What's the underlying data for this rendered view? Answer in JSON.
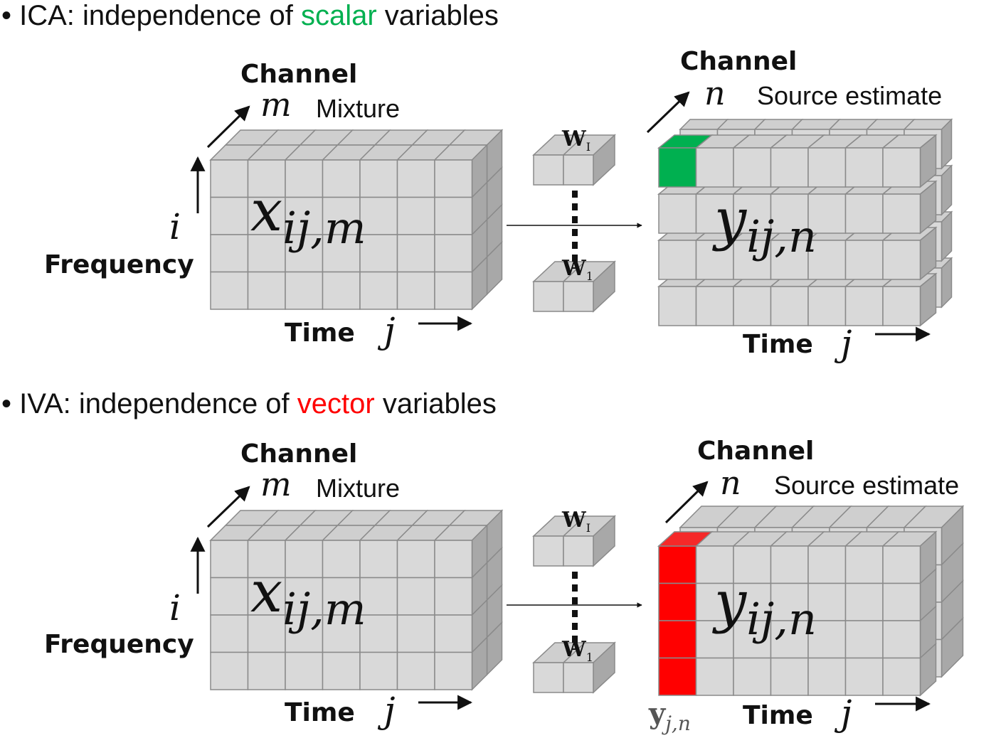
{
  "colors": {
    "cube_face": "#d9d9d9",
    "cube_top": "#cfcfcf",
    "cube_side": "#a8a8a8",
    "cube_edge": "#8a8a8a",
    "scalar_highlight": "#00b050",
    "vector_highlight": "#ff0000",
    "text": "#111111"
  },
  "ica": {
    "heading_prefix": "• ICA: independence of ",
    "heading_highlight": "scalar",
    "heading_suffix": " variables",
    "input": {
      "channel_label": "Channel",
      "channel_var": "m",
      "channel_desc": "Mixture",
      "frequency_var": "i",
      "frequency_label": "Frequency",
      "time_label": "Time",
      "time_var": "j",
      "tensor_base": "x",
      "tensor_sub": "ij,m"
    },
    "filter_label": "W",
    "filter_sub_top": "I",
    "filter_sub_bottom": "1",
    "output": {
      "channel_label": "Channel",
      "channel_var": "n",
      "channel_desc": "Source estimate",
      "time_label": "Time",
      "time_var": "j",
      "tensor_base": "y",
      "tensor_sub": "ij,n"
    }
  },
  "iva": {
    "heading_prefix": "• IVA: independence of ",
    "heading_highlight": "vector",
    "heading_suffix": " variables",
    "input": {
      "channel_label": "Channel",
      "channel_var": "m",
      "channel_desc": "Mixture",
      "frequency_var": "i",
      "frequency_label": "Frequency",
      "time_label": "Time",
      "time_var": "j",
      "tensor_base": "x",
      "tensor_sub": "ij,m"
    },
    "filter_label": "W",
    "filter_sub_top": "I",
    "filter_sub_bottom": "1",
    "output": {
      "channel_label": "Channel",
      "channel_var": "n",
      "channel_desc": "Source estimate",
      "time_label": "Time",
      "time_var": "j",
      "tensor_base": "y",
      "tensor_sub": "ij,n",
      "vector_label_base": "y",
      "vector_label_sub": "j,n"
    }
  }
}
